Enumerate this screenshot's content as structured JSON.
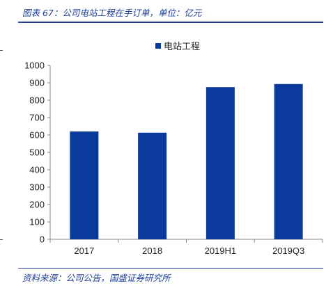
{
  "caption": "图表 67：公司电站工程在手订单，单位：亿元",
  "source": "资料来源：公司公告，国盛证券研究所",
  "colors": {
    "bar": "#0a3a9b",
    "accent": "#1f3f99",
    "axis": "#888888"
  },
  "chart_data": {
    "type": "bar",
    "categories": [
      "2017",
      "2018",
      "2019H1",
      "2019Q3"
    ],
    "series": [
      {
        "name": "电站工程",
        "values": [
          620,
          613,
          875,
          893
        ]
      }
    ],
    "yticks": [
      0,
      100,
      200,
      300,
      400,
      500,
      600,
      700,
      800,
      900,
      1000
    ],
    "ylim": [
      0,
      1000
    ],
    "legend": "top-center",
    "grid": false
  }
}
